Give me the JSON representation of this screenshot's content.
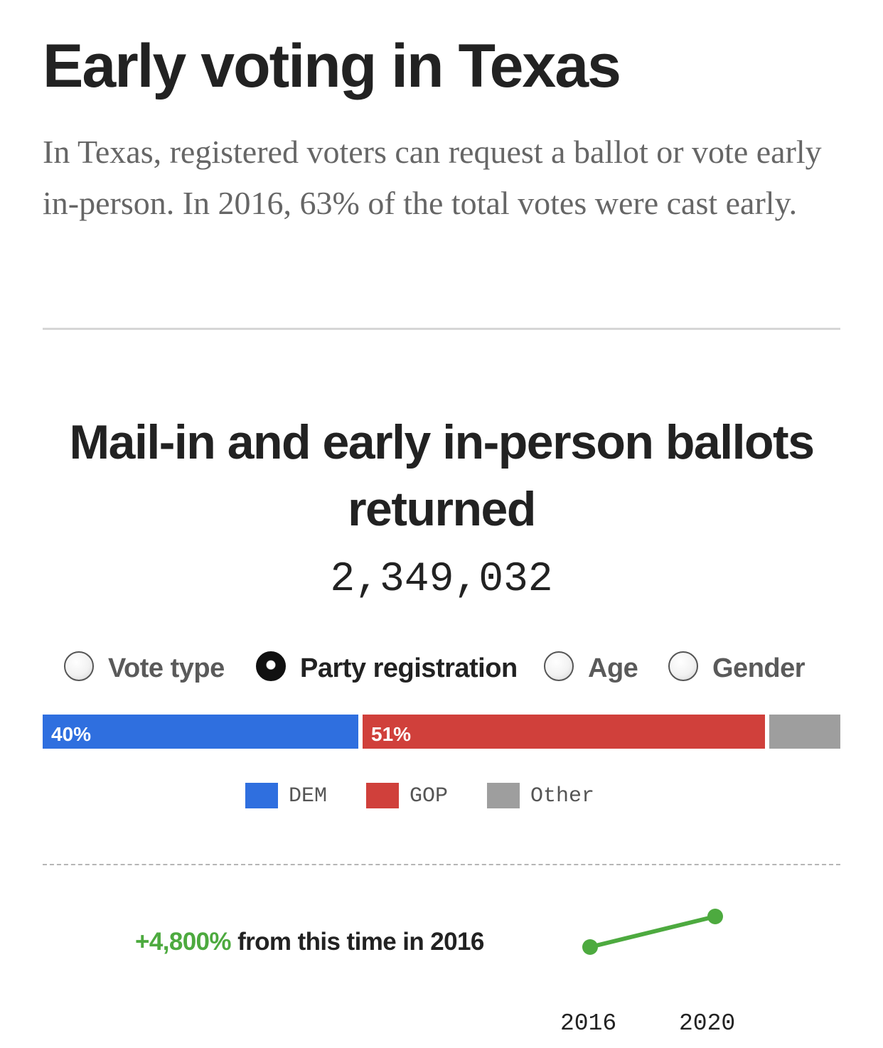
{
  "header": {
    "title": "Early voting in Texas",
    "dek": "In Texas, registered voters can request a ballot or vote early in-person. In 2016, 63% of the total votes were cast early."
  },
  "chart_data": [
    {
      "type": "bar",
      "title": "Mail-in and early in-person ballots returned",
      "total": "2,349,032",
      "stacked": true,
      "orientation": "horizontal",
      "view_options": [
        {
          "label": "Vote type",
          "selected": false
        },
        {
          "label": "Party registration",
          "selected": true
        },
        {
          "label": "Age",
          "selected": false
        },
        {
          "label": "Gender",
          "selected": false
        }
      ],
      "categories": [
        "DEM",
        "GOP",
        "Other"
      ],
      "values": [
        40,
        51,
        9
      ],
      "value_labels": [
        "40%",
        "51%",
        ""
      ],
      "colors": [
        "#2f6fdf",
        "#d0403b",
        "#9e9e9e"
      ],
      "legend": [
        "DEM",
        "GOP",
        "Other"
      ],
      "legend_position": "bottom-center"
    },
    {
      "type": "line",
      "title": "",
      "change_value": "+4,800%",
      "change_text": "from this time in 2016",
      "x": [
        "2016",
        "2020"
      ],
      "y": [
        1,
        49
      ],
      "color": "#4daa3f"
    }
  ]
}
